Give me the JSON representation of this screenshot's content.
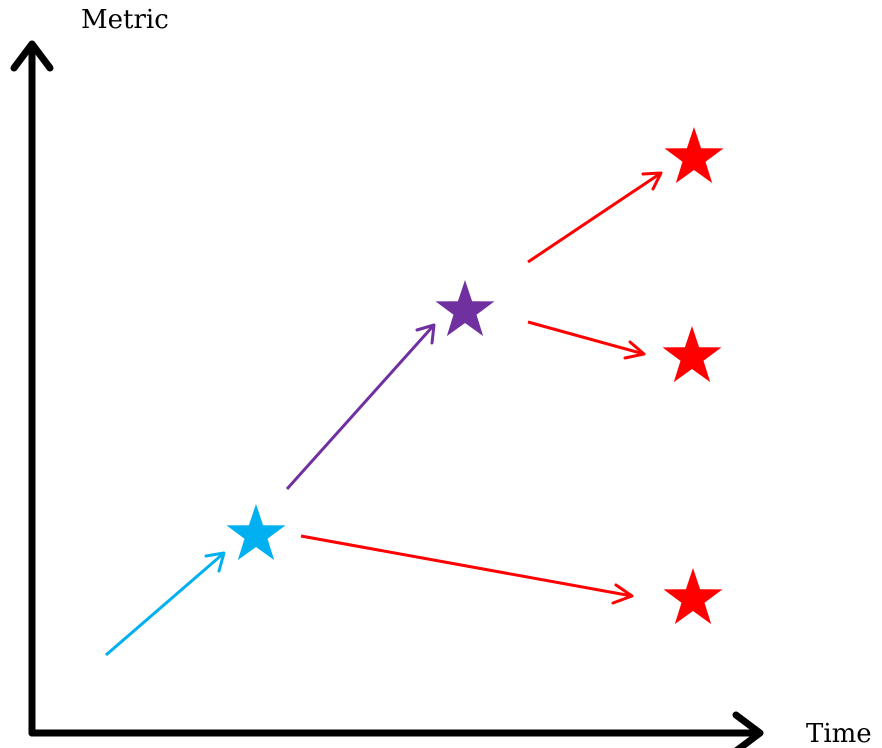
{
  "axes": {
    "y_label": "Metric",
    "x_label": "Time",
    "color": "#000000"
  },
  "colors": {
    "cyan": "#00b0f0",
    "purple": "#7030a0",
    "red": "#ff0000"
  },
  "nodes": [
    {
      "id": "origin-star",
      "color": "cyan"
    },
    {
      "id": "middle-star",
      "color": "purple"
    },
    {
      "id": "top-right-star",
      "color": "red"
    },
    {
      "id": "mid-right-star",
      "color": "red"
    },
    {
      "id": "bottom-right-star",
      "color": "red"
    }
  ],
  "arrows": [
    {
      "id": "entry-arrow",
      "to": "origin-star",
      "color": "cyan"
    },
    {
      "id": "origin-to-middle-arrow",
      "from": "origin-star",
      "to": "middle-star",
      "color": "purple"
    },
    {
      "id": "origin-to-bottom-right-arrow",
      "from": "origin-star",
      "to": "bottom-right-star",
      "color": "red"
    },
    {
      "id": "middle-to-top-right-arrow",
      "from": "middle-star",
      "to": "top-right-star",
      "color": "red"
    },
    {
      "id": "middle-to-mid-right-arrow",
      "from": "middle-star",
      "to": "mid-right-star",
      "color": "red"
    }
  ]
}
